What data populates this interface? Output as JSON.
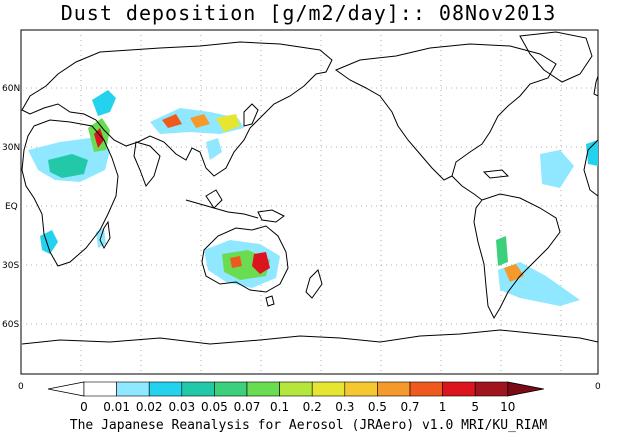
{
  "map": {
    "title": "Dust deposition [g/m2/day]:: 08Nov2013",
    "footer": "The Japanese Reanalysis for Aerosol (JRAero) v1.0 MRI/KU_RIAM",
    "lat_labels": [
      "60N",
      "30N",
      "EQ",
      "30S",
      "60S"
    ],
    "lon_labels": [
      "0",
      "0"
    ],
    "colors": {
      "coast": "#000000",
      "grid": "#999999",
      "frame": "#000000"
    }
  },
  "colorbar": {
    "labels": [
      "0",
      "0.01",
      "0.02",
      "0.03",
      "0.05",
      "0.07",
      "0.1",
      "0.2",
      "0.3",
      "0.5",
      "0.7",
      "1",
      "5",
      "10"
    ],
    "colors": [
      "#ffffff",
      "#ffffff",
      "#8fe8ff",
      "#25d2ee",
      "#22c8a8",
      "#3cd07c",
      "#6adc52",
      "#b4e63c",
      "#e6e632",
      "#f5c832",
      "#f59a2a",
      "#ee5a1e",
      "#dc141e",
      "#a0141e",
      "#7a0a14"
    ]
  }
}
